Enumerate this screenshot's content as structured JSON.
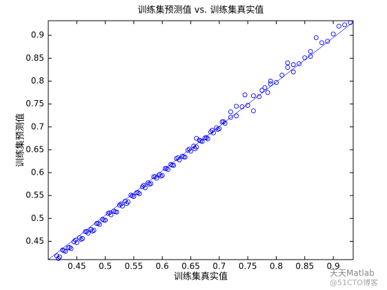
{
  "chart_data": {
    "type": "scatter",
    "title": "训练集预测值 vs. 训练集真实值",
    "x_label": "训练集真实值",
    "y_label": "训练集预测值",
    "watermark": [
      "天天Matlab",
      "@51CTO博客"
    ],
    "xlim": [
      0.4,
      0.935
    ],
    "ylim": [
      0.41,
      0.932
    ],
    "xticks": [
      0.45,
      0.5,
      0.55,
      0.6,
      0.65,
      0.7,
      0.75,
      0.8,
      0.85,
      0.9
    ],
    "yticks": [
      0.45,
      0.5,
      0.55,
      0.6,
      0.65,
      0.7,
      0.75,
      0.8,
      0.85,
      0.9
    ],
    "series": [
      {
        "color": "#0000ff",
        "x": [
          0.415,
          0.42,
          0.425,
          0.43,
          0.435,
          0.44,
          0.445,
          0.45,
          0.455,
          0.46,
          0.465,
          0.47,
          0.475,
          0.48,
          0.485,
          0.49,
          0.495,
          0.5,
          0.505,
          0.51,
          0.515,
          0.52,
          0.525,
          0.53,
          0.535,
          0.54,
          0.545,
          0.55,
          0.555,
          0.56,
          0.565,
          0.57,
          0.575,
          0.58,
          0.585,
          0.59,
          0.595,
          0.6,
          0.605,
          0.61,
          0.615,
          0.62,
          0.625,
          0.63,
          0.635,
          0.64,
          0.645,
          0.65,
          0.655,
          0.66,
          0.665,
          0.67,
          0.675,
          0.68,
          0.685,
          0.69,
          0.695,
          0.7,
          0.705,
          0.71,
          0.72,
          0.73,
          0.74,
          0.75,
          0.76,
          0.77,
          0.78,
          0.785,
          0.79,
          0.8,
          0.81,
          0.82,
          0.83,
          0.84,
          0.85,
          0.86,
          0.87,
          0.88,
          0.89,
          0.9,
          0.91,
          0.92,
          0.93,
          0.4175,
          0.4275,
          0.4375,
          0.4475,
          0.4575,
          0.4675,
          0.4775,
          0.4875,
          0.4975,
          0.5075,
          0.5175,
          0.5275,
          0.5375,
          0.5475,
          0.5575,
          0.5675,
          0.5775,
          0.5875,
          0.5975,
          0.6075,
          0.6175,
          0.6275,
          0.6375,
          0.6475,
          0.6575,
          0.6675,
          0.6775,
          0.6875,
          0.6975,
          0.7075,
          0.73,
          0.76,
          0.775,
          0.745,
          0.79,
          0.82,
          0.83,
          0.66,
          0.72,
          0.86
        ],
        "values": [
          0.418,
          0.416,
          0.431,
          0.428,
          0.436,
          0.434,
          0.449,
          0.447,
          0.458,
          0.456,
          0.471,
          0.468,
          0.476,
          0.474,
          0.489,
          0.487,
          0.498,
          0.496,
          0.511,
          0.508,
          0.516,
          0.514,
          0.529,
          0.527,
          0.538,
          0.536,
          0.551,
          0.548,
          0.556,
          0.554,
          0.569,
          0.567,
          0.578,
          0.576,
          0.591,
          0.588,
          0.596,
          0.594,
          0.609,
          0.607,
          0.618,
          0.616,
          0.631,
          0.628,
          0.636,
          0.634,
          0.649,
          0.647,
          0.658,
          0.656,
          0.671,
          0.668,
          0.676,
          0.674,
          0.689,
          0.687,
          0.698,
          0.696,
          0.711,
          0.708,
          0.721,
          0.724,
          0.744,
          0.747,
          0.768,
          0.766,
          0.786,
          0.775,
          0.794,
          0.797,
          0.813,
          0.83,
          0.836,
          0.838,
          0.851,
          0.854,
          0.895,
          0.884,
          0.887,
          0.903,
          0.92,
          0.923,
          0.928,
          0.4125,
          0.4295,
          0.4365,
          0.4525,
          0.4545,
          0.4715,
          0.4725,
          0.4895,
          0.4965,
          0.5125,
          0.5145,
          0.5315,
          0.5325,
          0.5495,
          0.5565,
          0.5725,
          0.5745,
          0.5915,
          0.5925,
          0.6095,
          0.6165,
          0.6325,
          0.6345,
          0.6515,
          0.6525,
          0.6695,
          0.6765,
          0.6925,
          0.6945,
          0.7115,
          0.745,
          0.735,
          0.78,
          0.77,
          0.8,
          0.84,
          0.82,
          0.675,
          0.733,
          0.865
        ]
      }
    ]
  }
}
